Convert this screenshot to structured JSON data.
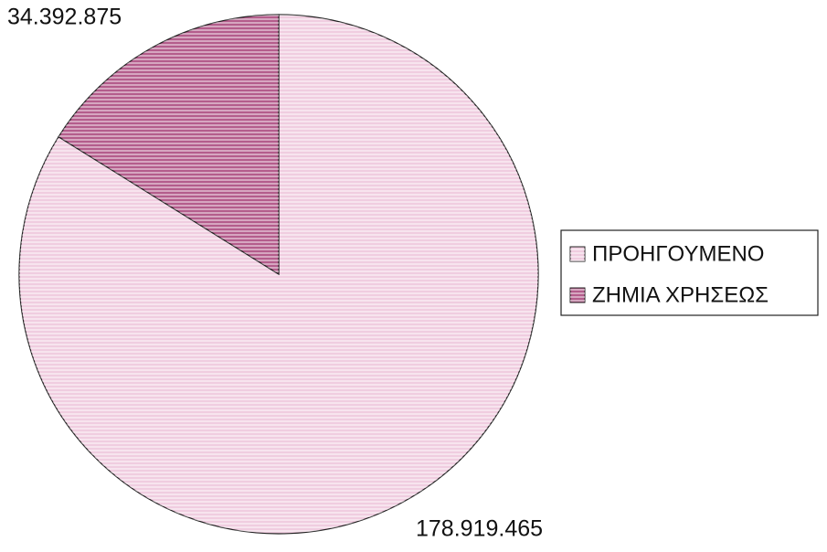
{
  "chart_data": {
    "type": "pie",
    "categories": [
      "ΠΡΟΗΓΟΥΜΕΝΟ",
      "ΖΗΜΙΑ ΧΡΗΣΕΩΣ"
    ],
    "values": [
      178919465,
      34392875
    ],
    "value_labels": [
      "178.919.465",
      "34.392.875"
    ],
    "colors": [
      "#f0cde0",
      "#b45d8c"
    ],
    "legend": "right"
  }
}
